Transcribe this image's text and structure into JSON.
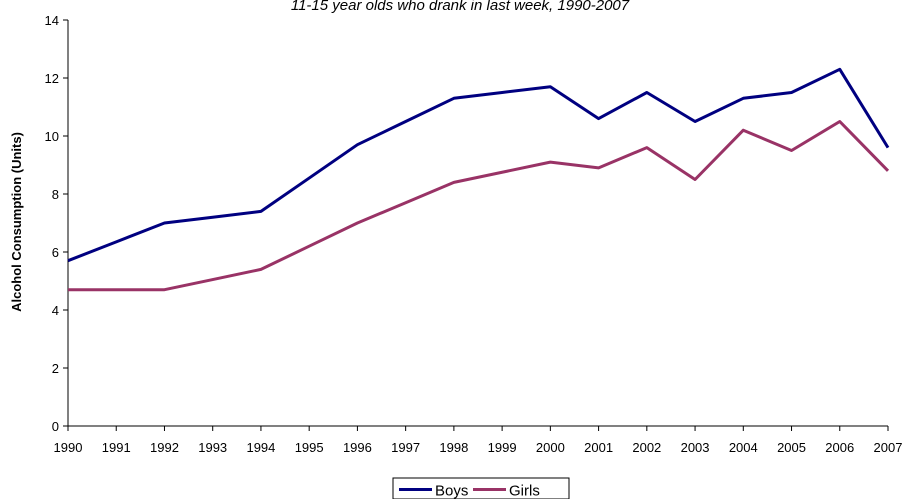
{
  "chart_data": {
    "type": "line",
    "title": "11-15 year olds who drank in last week, 1990-2007",
    "xlabel": "",
    "ylabel": "Alcohol Consumption (Units)",
    "x": [
      "1990",
      "1991",
      "1992",
      "1993",
      "1994",
      "1995",
      "1996",
      "1997",
      "1998",
      "1999",
      "2000",
      "2001",
      "2002",
      "2003",
      "2004",
      "2005",
      "2006",
      "2007"
    ],
    "ylim": [
      0,
      14
    ],
    "yticks": [
      0,
      2,
      4,
      6,
      8,
      10,
      12,
      14
    ],
    "grid": false,
    "legend_position": "bottom",
    "series": [
      {
        "name": "Boys",
        "color": "#000080",
        "values": [
          5.7,
          6.35,
          7.0,
          7.2,
          7.4,
          8.55,
          9.7,
          10.5,
          11.3,
          11.5,
          11.7,
          10.6,
          11.5,
          10.5,
          11.3,
          11.5,
          12.3,
          9.6
        ]
      },
      {
        "name": "Girls",
        "color": "#993366",
        "values": [
          4.7,
          4.7,
          4.7,
          5.05,
          5.4,
          6.2,
          7.0,
          7.7,
          8.4,
          8.75,
          9.1,
          8.9,
          9.6,
          8.5,
          10.2,
          9.5,
          10.5,
          8.8
        ]
      }
    ]
  }
}
